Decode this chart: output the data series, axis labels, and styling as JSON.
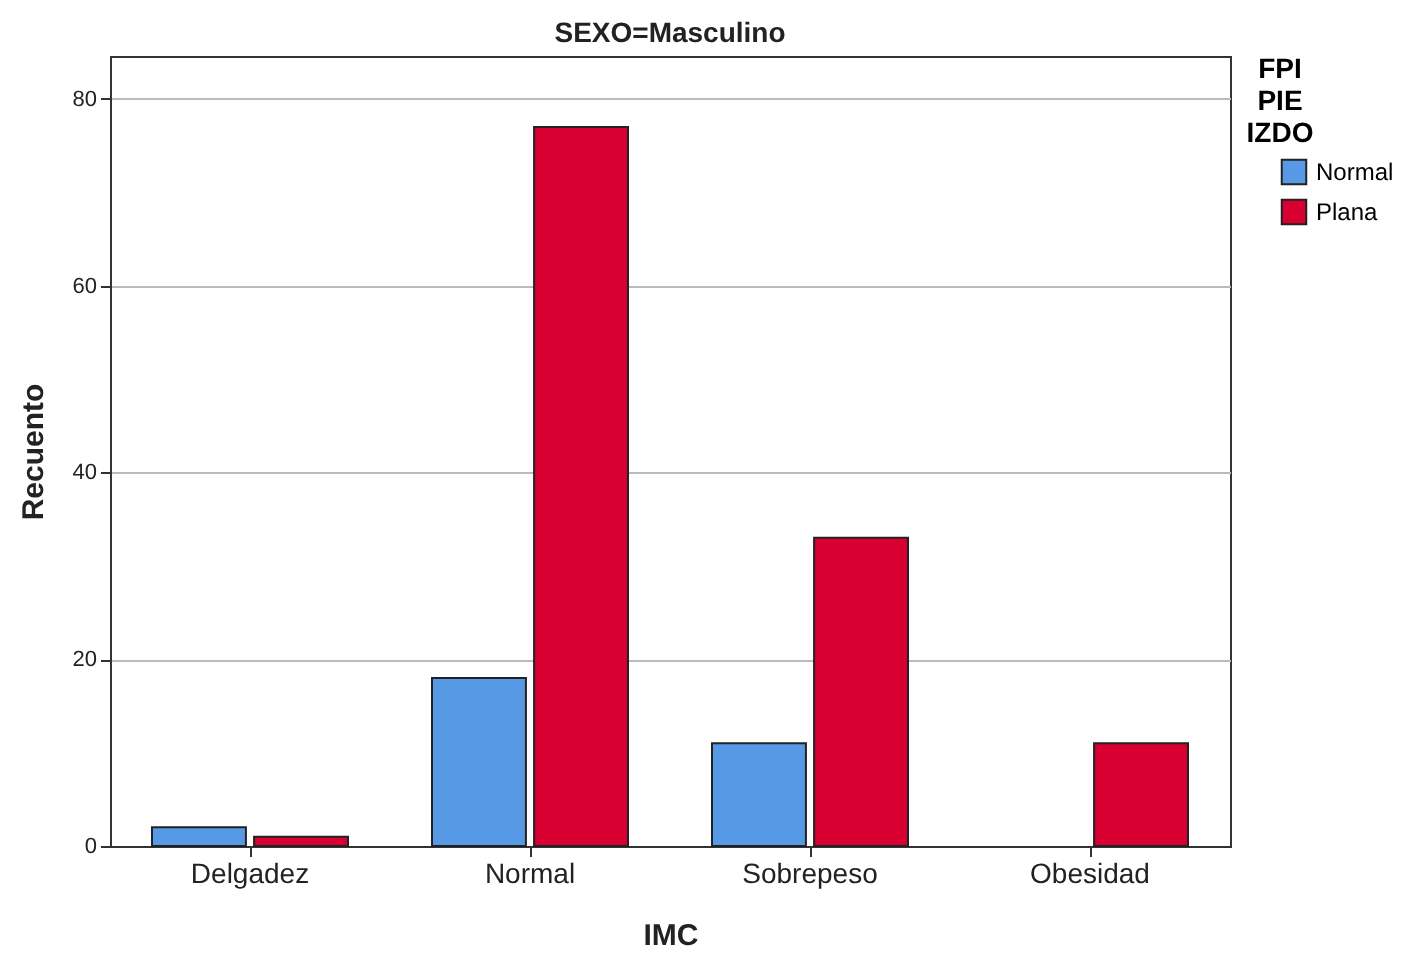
{
  "chart_data": {
    "type": "bar",
    "title": "SEXO=Masculino",
    "xlabel": "IMC",
    "ylabel": "Recuento",
    "legend_title": "FPI PIE IZDO",
    "categories": [
      "Delgadez",
      "Normal",
      "Sobrepeso",
      "Obesidad"
    ],
    "series": [
      {
        "name": "Normal",
        "color": "#5799e5",
        "values": [
          2,
          18,
          11,
          null
        ]
      },
      {
        "name": "Plana",
        "color": "#d70031",
        "values": [
          1,
          77,
          33,
          11
        ]
      }
    ],
    "ylim": [
      0,
      84.6
    ],
    "yticks": [
      0,
      20,
      40,
      60,
      80
    ],
    "grid": "y",
    "legend": "top right"
  }
}
